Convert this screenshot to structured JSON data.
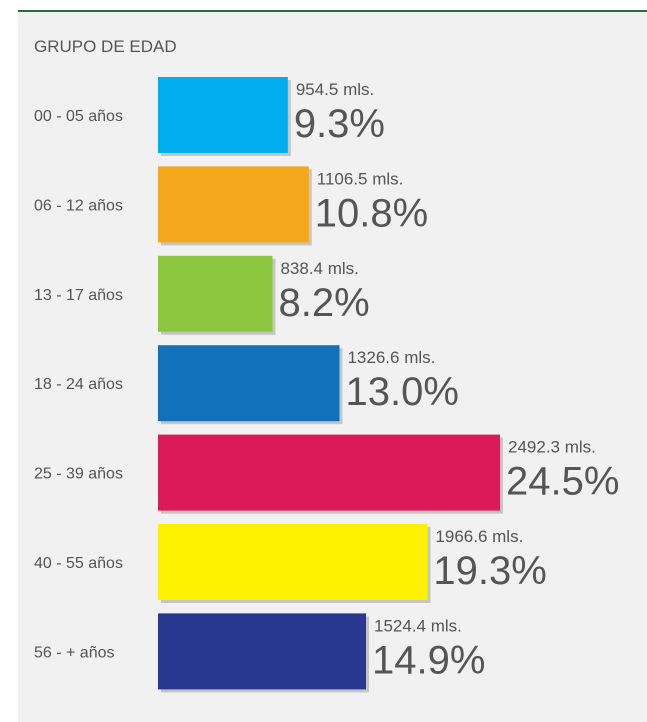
{
  "chart_data": {
    "type": "bar",
    "orientation": "horizontal",
    "title": "GRUPO DE EDAD",
    "categories": [
      "00 - 05 años",
      "06 - 12 años",
      "13 - 17 años",
      "18 - 24 años",
      "25 - 39 años",
      "40 - 55 años",
      "56 - + años"
    ],
    "values": [
      9.3,
      10.8,
      8.2,
      13.0,
      24.5,
      19.3,
      14.9
    ],
    "value_labels": [
      "9.3%",
      "10.8%",
      "8.2%",
      "13.0%",
      "24.5%",
      "19.3%",
      "14.9%"
    ],
    "count_labels": [
      "954.5 mls.",
      "1106.5 mls.",
      "838.4 mls.",
      "1326.6 mls.",
      "2492.3 mls.",
      "1966.6 mls.",
      "1524.4 mls."
    ],
    "colors": [
      "#00aeef",
      "#f5a81c",
      "#8dc63f",
      "#1172bb",
      "#dc1a59",
      "#fff200",
      "#283891"
    ]
  }
}
